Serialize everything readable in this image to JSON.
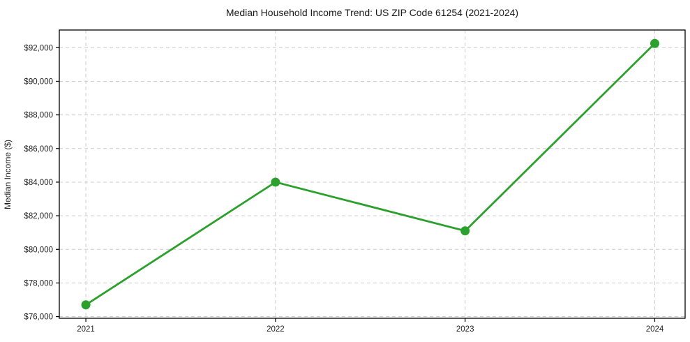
{
  "chart_data": {
    "type": "line",
    "title": "Median Household Income Trend: US ZIP Code 61254 (2021-2024)",
    "xlabel": "",
    "ylabel": "Median Income ($)",
    "categories": [
      "2021",
      "2022",
      "2023",
      "2024"
    ],
    "x": [
      2021,
      2022,
      2023,
      2024
    ],
    "values": [
      76700,
      84000,
      81100,
      92250
    ],
    "xlim": [
      2020.86,
      2024.16
    ],
    "ylim": [
      75900,
      93050
    ],
    "yticks": [
      76000,
      78000,
      80000,
      82000,
      84000,
      86000,
      88000,
      90000,
      92000
    ],
    "ytick_labels": [
      "$76,000",
      "$78,000",
      "$80,000",
      "$82,000",
      "$84,000",
      "$86,000",
      "$88,000",
      "$90,000",
      "$92,000"
    ],
    "grid": true,
    "grid_style": "dashed",
    "grid_color": "#cccccc",
    "line_color": "#2ca02c",
    "marker": "circle",
    "marker_size": 6.5,
    "line_width": 2.8,
    "legend": "none",
    "axis_color": "#000000"
  }
}
